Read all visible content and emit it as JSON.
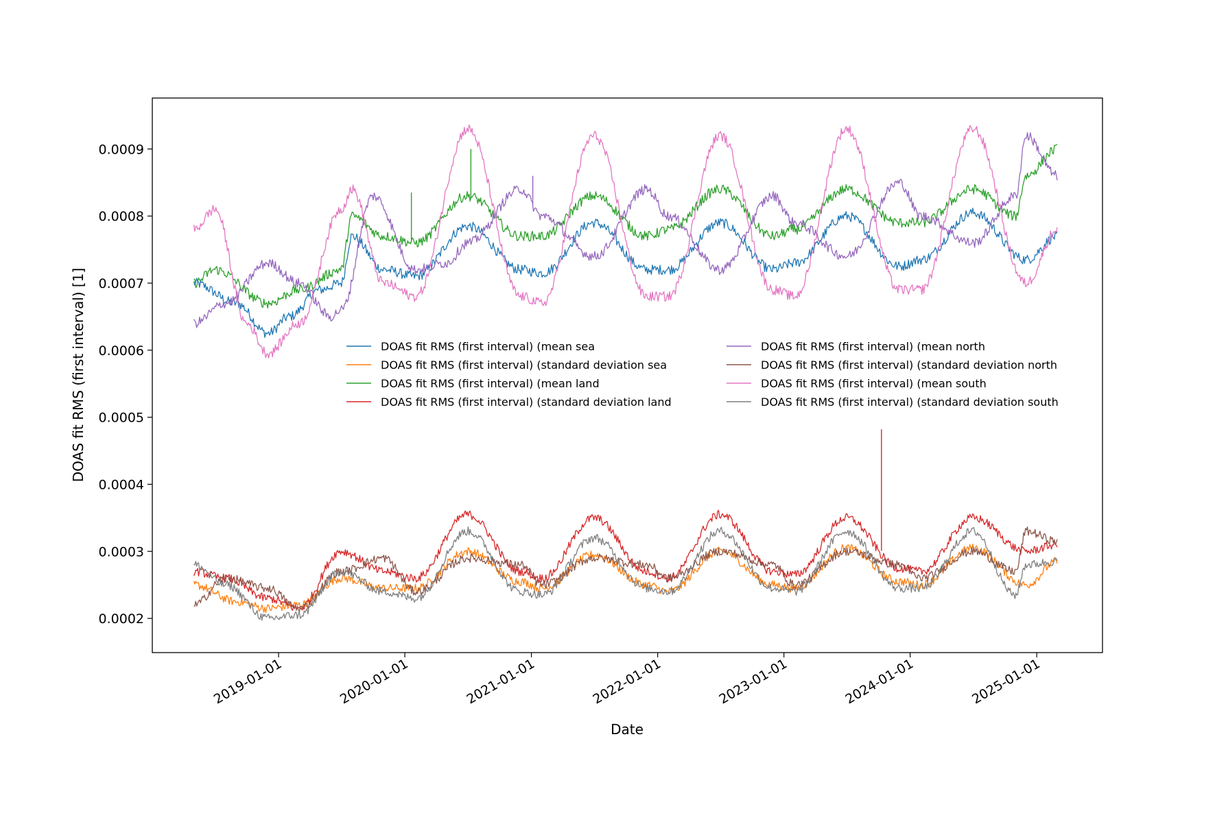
{
  "chart_data": {
    "type": "line",
    "title": "",
    "xlabel": "Date",
    "ylabel": "DOAS fit RMS (first interval) [1]",
    "x_range": [
      "2018-01-01",
      "2025-07-10"
    ],
    "x_start": "2018-05-01",
    "x_end": "2025-03-01",
    "ylim": [
      0.000149,
      0.000976
    ],
    "yticks": [
      "0.0002",
      "0.0003",
      "0.0004",
      "0.0005",
      "0.0006",
      "0.0007",
      "0.0008",
      "0.0009"
    ],
    "xticks": [
      "2019-01-01",
      "2020-01-01",
      "2021-01-01",
      "2022-01-01",
      "2023-01-01",
      "2024-01-01",
      "2025-01-01"
    ],
    "grid": false,
    "legend_position": "center",
    "noise_note": "Series are approximate; read at a few points along the time axis.",
    "series": [
      {
        "name": "DOAS fit RMS (first interval) (mean sea",
        "color": "#1f77b4",
        "points": [
          [
            "2018-05-01",
            0.0007
          ],
          [
            "2018-09-01",
            0.00067
          ],
          [
            "2018-12-01",
            0.000625
          ],
          [
            "2019-02-01",
            0.00065
          ],
          [
            "2019-05-01",
            0.00069
          ],
          [
            "2019-07-01",
            0.0007
          ],
          [
            "2019-08-01",
            0.00077
          ],
          [
            "2019-11-01",
            0.00072
          ],
          [
            "2020-02-01",
            0.00071
          ],
          [
            "2020-07-01",
            0.000785
          ],
          [
            "2020-12-01",
            0.00072
          ],
          [
            "2021-02-01",
            0.000715
          ],
          [
            "2021-07-01",
            0.00079
          ],
          [
            "2021-12-01",
            0.00072
          ],
          [
            "2022-02-01",
            0.00072
          ],
          [
            "2022-07-01",
            0.00079
          ],
          [
            "2022-12-01",
            0.00072
          ],
          [
            "2023-02-01",
            0.00073
          ],
          [
            "2023-07-01",
            0.0008
          ],
          [
            "2023-12-01",
            0.000725
          ],
          [
            "2024-02-01",
            0.000735
          ],
          [
            "2024-07-01",
            0.000805
          ],
          [
            "2024-12-01",
            0.000735
          ],
          [
            "2025-03-01",
            0.00077
          ]
        ]
      },
      {
        "name": "DOAS fit RMS (first interval) (standard deviation sea",
        "color": "#ff7f0e",
        "points": [
          [
            "2018-05-01",
            0.00025
          ],
          [
            "2018-09-01",
            0.000225
          ],
          [
            "2018-12-01",
            0.000215
          ],
          [
            "2019-03-01",
            0.00022
          ],
          [
            "2019-07-01",
            0.00026
          ],
          [
            "2019-11-01",
            0.000245
          ],
          [
            "2020-02-01",
            0.000245
          ],
          [
            "2020-07-01",
            0.0003
          ],
          [
            "2020-12-01",
            0.000255
          ],
          [
            "2021-02-01",
            0.000245
          ],
          [
            "2021-07-01",
            0.000295
          ],
          [
            "2021-12-01",
            0.00025
          ],
          [
            "2022-02-01",
            0.00024
          ],
          [
            "2022-07-01",
            0.0003
          ],
          [
            "2022-12-01",
            0.00025
          ],
          [
            "2023-02-01",
            0.000245
          ],
          [
            "2023-07-01",
            0.000305
          ],
          [
            "2023-12-01",
            0.000255
          ],
          [
            "2024-02-01",
            0.00025
          ],
          [
            "2024-07-01",
            0.000305
          ],
          [
            "2024-12-01",
            0.00025
          ],
          [
            "2025-03-01",
            0.000285
          ]
        ]
      },
      {
        "name": "DOAS fit RMS (first interval) (mean land",
        "color": "#2ca02c",
        "points": [
          [
            "2018-05-01",
            0.0007
          ],
          [
            "2018-07-01",
            0.00072
          ],
          [
            "2018-12-01",
            0.00067
          ],
          [
            "2019-03-01",
            0.00069
          ],
          [
            "2019-07-01",
            0.00072
          ],
          [
            "2019-08-01",
            0.0008
          ],
          [
            "2019-11-01",
            0.00077
          ],
          [
            "2020-02-01",
            0.00076
          ],
          [
            "2020-07-01",
            0.00083
          ],
          [
            "2020-12-01",
            0.00077
          ],
          [
            "2021-02-01",
            0.00077
          ],
          [
            "2021-07-01",
            0.00083
          ],
          [
            "2021-12-01",
            0.00077
          ],
          [
            "2022-02-01",
            0.00078
          ],
          [
            "2022-07-01",
            0.00084
          ],
          [
            "2022-12-01",
            0.00077
          ],
          [
            "2023-02-01",
            0.00078
          ],
          [
            "2023-07-01",
            0.00084
          ],
          [
            "2023-12-01",
            0.00079
          ],
          [
            "2024-02-01",
            0.00079
          ],
          [
            "2024-07-01",
            0.00084
          ],
          [
            "2024-11-01",
            0.0008
          ],
          [
            "2024-12-01",
            0.00086
          ],
          [
            "2025-03-01",
            0.0009
          ]
        ]
      },
      {
        "name": "DOAS fit RMS (first interval) (standard deviation land",
        "color": "#d62728",
        "points": [
          [
            "2018-05-01",
            0.00027
          ],
          [
            "2018-08-01",
            0.00026
          ],
          [
            "2018-12-01",
            0.00023
          ],
          [
            "2019-03-01",
            0.000215
          ],
          [
            "2019-07-01",
            0.0003
          ],
          [
            "2019-11-01",
            0.00027
          ],
          [
            "2020-02-01",
            0.00026
          ],
          [
            "2020-07-01",
            0.000355
          ],
          [
            "2020-12-01",
            0.00027
          ],
          [
            "2021-02-01",
            0.00026
          ],
          [
            "2021-07-01",
            0.00035
          ],
          [
            "2021-12-01",
            0.00027
          ],
          [
            "2022-02-01",
            0.00026
          ],
          [
            "2022-07-01",
            0.000355
          ],
          [
            "2022-12-01",
            0.00027
          ],
          [
            "2023-02-01",
            0.000265
          ],
          [
            "2023-07-01",
            0.00035
          ],
          [
            "2023-12-01",
            0.000275
          ],
          [
            "2024-02-01",
            0.00027
          ],
          [
            "2024-07-01",
            0.00035
          ],
          [
            "2024-12-01",
            0.0003
          ],
          [
            "2025-03-01",
            0.00031
          ]
        ]
      },
      {
        "name": "DOAS fit RMS (first interval) (mean north",
        "color": "#9467bd",
        "points": [
          [
            "2018-05-01",
            0.00064
          ],
          [
            "2018-08-01",
            0.00067
          ],
          [
            "2018-12-01",
            0.00073
          ],
          [
            "2019-03-01",
            0.0007
          ],
          [
            "2019-06-01",
            0.00065
          ],
          [
            "2019-07-01",
            0.00066
          ],
          [
            "2019-10-01",
            0.00083
          ],
          [
            "2020-02-01",
            0.00072
          ],
          [
            "2020-05-01",
            0.00073
          ],
          [
            "2020-07-01",
            0.00076
          ],
          [
            "2020-12-01",
            0.00084
          ],
          [
            "2021-02-01",
            0.0008
          ],
          [
            "2021-07-01",
            0.00074
          ],
          [
            "2021-12-01",
            0.00084
          ],
          [
            "2022-02-01",
            0.0008
          ],
          [
            "2022-07-01",
            0.00072
          ],
          [
            "2022-12-01",
            0.00083
          ],
          [
            "2023-02-01",
            0.00079
          ],
          [
            "2023-07-01",
            0.00074
          ],
          [
            "2023-12-01",
            0.00085
          ],
          [
            "2024-02-01",
            0.0008
          ],
          [
            "2024-07-01",
            0.00076
          ],
          [
            "2024-11-01",
            0.00083
          ],
          [
            "2024-12-01",
            0.00092
          ],
          [
            "2025-03-01",
            0.00086
          ]
        ]
      },
      {
        "name": "DOAS fit RMS (first interval) (standard deviation north",
        "color": "#8c564b",
        "points": [
          [
            "2018-05-01",
            0.00022
          ],
          [
            "2018-08-01",
            0.00026
          ],
          [
            "2018-12-01",
            0.000245
          ],
          [
            "2019-03-01",
            0.000215
          ],
          [
            "2019-07-01",
            0.00027
          ],
          [
            "2019-11-01",
            0.00029
          ],
          [
            "2020-02-01",
            0.00024
          ],
          [
            "2020-07-01",
            0.00029
          ],
          [
            "2020-12-01",
            0.00028
          ],
          [
            "2021-02-01",
            0.00025
          ],
          [
            "2021-07-01",
            0.00029
          ],
          [
            "2021-12-01",
            0.00028
          ],
          [
            "2022-02-01",
            0.00026
          ],
          [
            "2022-07-01",
            0.0003
          ],
          [
            "2022-12-01",
            0.00028
          ],
          [
            "2023-02-01",
            0.00025
          ],
          [
            "2023-07-01",
            0.0003
          ],
          [
            "2023-12-01",
            0.00028
          ],
          [
            "2024-02-01",
            0.00026
          ],
          [
            "2024-07-01",
            0.0003
          ],
          [
            "2024-11-01",
            0.00027
          ],
          [
            "2024-12-01",
            0.00033
          ],
          [
            "2025-03-01",
            0.000315
          ]
        ]
      },
      {
        "name": "DOAS fit RMS (first interval) (mean south",
        "color": "#e377c2",
        "points": [
          [
            "2018-05-01",
            0.00078
          ],
          [
            "2018-07-01",
            0.00081
          ],
          [
            "2018-10-01",
            0.00064
          ],
          [
            "2018-12-01",
            0.000595
          ],
          [
            "2019-03-01",
            0.00064
          ],
          [
            "2019-07-01",
            0.00081
          ],
          [
            "2019-08-01",
            0.00084
          ],
          [
            "2019-11-01",
            0.0007
          ],
          [
            "2020-02-01",
            0.00068
          ],
          [
            "2020-07-01",
            0.00093
          ],
          [
            "2020-12-01",
            0.00068
          ],
          [
            "2021-02-01",
            0.00067
          ],
          [
            "2021-07-01",
            0.00092
          ],
          [
            "2021-12-01",
            0.00068
          ],
          [
            "2022-02-01",
            0.00068
          ],
          [
            "2022-07-01",
            0.00092
          ],
          [
            "2022-12-01",
            0.00069
          ],
          [
            "2023-02-01",
            0.00068
          ],
          [
            "2023-07-01",
            0.00093
          ],
          [
            "2023-12-01",
            0.00069
          ],
          [
            "2024-02-01",
            0.00069
          ],
          [
            "2024-07-01",
            0.00093
          ],
          [
            "2024-12-01",
            0.0007
          ],
          [
            "2025-03-01",
            0.00078
          ]
        ]
      },
      {
        "name": "DOAS fit RMS (first interval) (standard deviation south",
        "color": "#7f7f7f",
        "points": [
          [
            "2018-05-01",
            0.00028
          ],
          [
            "2018-08-01",
            0.00025
          ],
          [
            "2018-12-01",
            0.0002
          ],
          [
            "2019-03-01",
            0.000205
          ],
          [
            "2019-07-01",
            0.00027
          ],
          [
            "2019-11-01",
            0.00024
          ],
          [
            "2020-02-01",
            0.00023
          ],
          [
            "2020-07-01",
            0.00033
          ],
          [
            "2020-12-01",
            0.00024
          ],
          [
            "2021-02-01",
            0.000235
          ],
          [
            "2021-07-01",
            0.00032
          ],
          [
            "2021-12-01",
            0.000245
          ],
          [
            "2022-02-01",
            0.00024
          ],
          [
            "2022-07-01",
            0.00033
          ],
          [
            "2022-12-01",
            0.000245
          ],
          [
            "2023-02-01",
            0.00024
          ],
          [
            "2023-07-01",
            0.00033
          ],
          [
            "2023-12-01",
            0.000245
          ],
          [
            "2024-02-01",
            0.000245
          ],
          [
            "2024-07-01",
            0.00033
          ],
          [
            "2024-11-01",
            0.000235
          ],
          [
            "2024-12-01",
            0.00028
          ],
          [
            "2025-03-01",
            0.000285
          ]
        ]
      }
    ],
    "spikes": [
      {
        "series": 2,
        "date": "2020-07-10",
        "value": 0.0009
      },
      {
        "series": 4,
        "date": "2021-01-05",
        "value": 0.00086
      },
      {
        "series": 3,
        "date": "2023-10-10",
        "value": 0.000482
      },
      {
        "series": 4,
        "date": "2019-08-20",
        "value": 0.00076
      },
      {
        "series": 2,
        "date": "2020-01-20",
        "value": 0.000835
      }
    ]
  }
}
